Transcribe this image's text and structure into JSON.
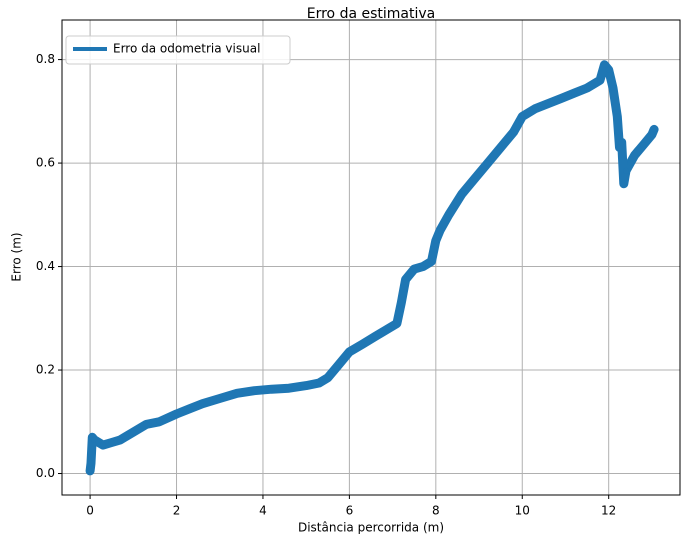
{
  "chart_data": {
    "type": "line",
    "title": "Erro da estimativa",
    "xlabel": "Distância percorrida (m)",
    "ylabel": "Erro (m)",
    "xlim": [
      -0.65,
      13.65
    ],
    "ylim": [
      -0.0415,
      0.8765
    ],
    "xticks": [
      0,
      2,
      4,
      6,
      8,
      10,
      12
    ],
    "xtick_labels": [
      "0",
      "2",
      "4",
      "6",
      "8",
      "10",
      "12"
    ],
    "yticks": [
      0.0,
      0.2,
      0.4,
      0.6,
      0.8
    ],
    "ytick_labels": [
      "0.0",
      "0.2",
      "0.4",
      "0.6",
      "0.8"
    ],
    "grid": true,
    "legend_position": "top-left",
    "series": [
      {
        "name": "Erro da odometria visual",
        "color": "#1f77b4",
        "x": [
          0.0,
          0.02,
          0.05,
          0.1,
          0.2,
          0.3,
          0.5,
          0.7,
          1.0,
          1.3,
          1.6,
          2.0,
          2.3,
          2.6,
          3.0,
          3.4,
          3.8,
          4.2,
          4.6,
          5.0,
          5.3,
          5.5,
          5.7,
          6.0,
          6.3,
          6.6,
          6.9,
          7.1,
          7.2,
          7.3,
          7.5,
          7.7,
          7.9,
          8.0,
          8.1,
          8.3,
          8.6,
          8.9,
          9.2,
          9.5,
          9.8,
          10.0,
          10.3,
          10.6,
          10.9,
          11.2,
          11.5,
          11.8,
          11.9,
          12.0,
          12.1,
          12.2,
          12.25,
          12.3,
          12.35,
          12.4,
          12.5,
          12.6,
          12.8,
          13.0,
          13.05
        ],
        "y": [
          0.005,
          0.02,
          0.07,
          0.065,
          0.06,
          0.055,
          0.06,
          0.065,
          0.08,
          0.095,
          0.1,
          0.115,
          0.125,
          0.135,
          0.145,
          0.155,
          0.16,
          0.163,
          0.165,
          0.17,
          0.175,
          0.185,
          0.205,
          0.235,
          0.25,
          0.265,
          0.28,
          0.29,
          0.33,
          0.375,
          0.395,
          0.4,
          0.41,
          0.45,
          0.47,
          0.5,
          0.54,
          0.57,
          0.6,
          0.63,
          0.66,
          0.69,
          0.705,
          0.715,
          0.725,
          0.735,
          0.745,
          0.76,
          0.79,
          0.78,
          0.745,
          0.69,
          0.63,
          0.64,
          0.56,
          0.585,
          0.6,
          0.615,
          0.635,
          0.655,
          0.665
        ]
      }
    ]
  }
}
